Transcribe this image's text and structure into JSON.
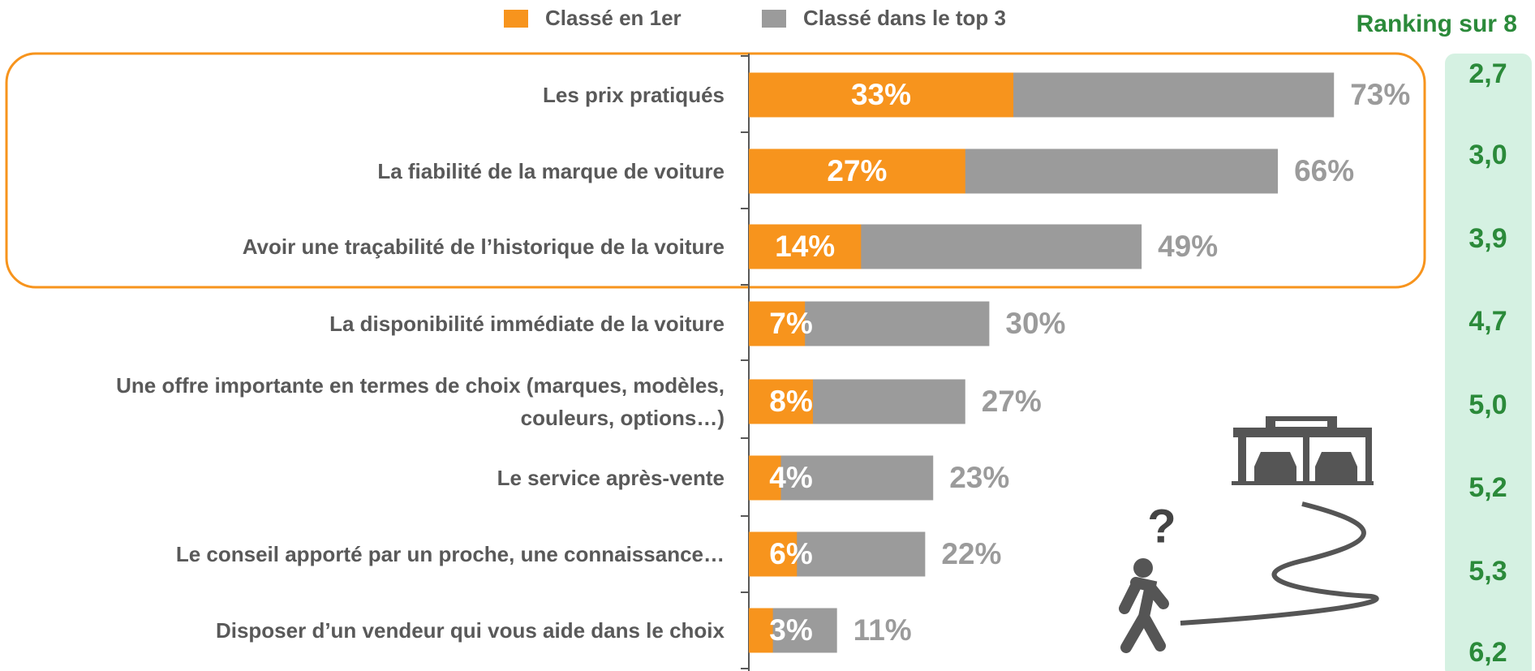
{
  "chart_data": {
    "type": "bar",
    "categories": [
      "Les prix pratiqués",
      "La fiabilité de la marque de voiture",
      "Avoir une traçabilité de l’historique de la voiture",
      "La disponibilité immédiate de la voiture",
      "Une offre importante en termes de choix (marques, modèles, couleurs, options…)",
      "Le service après-vente",
      "Le conseil apporté par un proche, une connaissance…",
      "Disposer d’un vendeur qui vous aide dans le choix"
    ],
    "series": [
      {
        "name": "Classé en 1er",
        "color": "#f7941d",
        "values": [
          33,
          27,
          14,
          7,
          8,
          4,
          6,
          3
        ],
        "value_labels": [
          "33%",
          "27%",
          "14%",
          "7%",
          "8%",
          "4%",
          "6%",
          "3%"
        ]
      },
      {
        "name": "Classé dans le top 3",
        "color": "#9b9b9b",
        "values": [
          73,
          66,
          49,
          30,
          27,
          23,
          22,
          11
        ],
        "value_labels": [
          "73%",
          "66%",
          "49%",
          "30%",
          "27%",
          "23%",
          "22%",
          "11%"
        ]
      }
    ],
    "ranking": {
      "title": "Ranking sur 8",
      "values": [
        2.7,
        3.0,
        3.9,
        4.7,
        5.0,
        5.2,
        5.3,
        6.2
      ],
      "value_labels": [
        "2,7",
        "3,0",
        "3,9",
        "4,7",
        "5,0",
        "5,2",
        "5,3",
        "6,2"
      ]
    }
  }
}
